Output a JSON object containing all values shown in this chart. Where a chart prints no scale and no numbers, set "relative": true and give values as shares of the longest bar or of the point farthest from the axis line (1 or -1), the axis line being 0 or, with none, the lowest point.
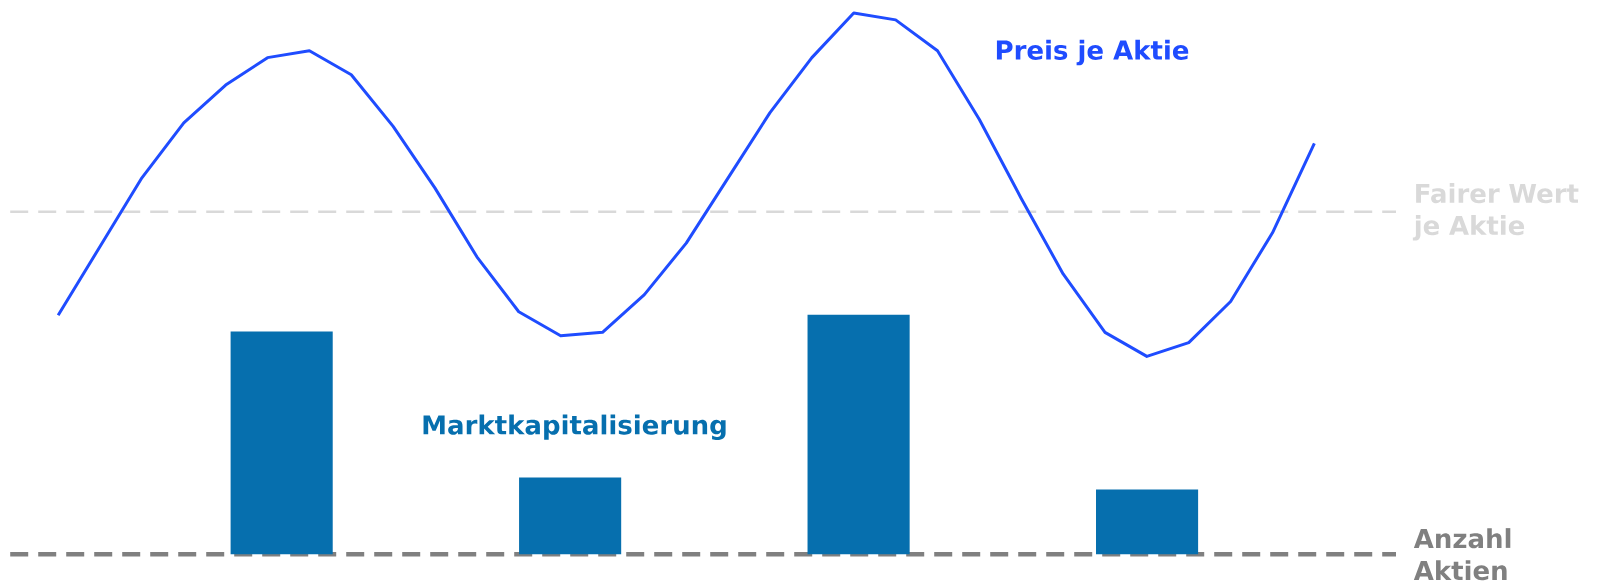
{
  "chart_data": [
    {
      "type": "bar",
      "relative": true,
      "categories": [
        null,
        null,
        null,
        null
      ],
      "series": [
        {
          "name": "Marktkapitalisierung",
          "color": "#066fae",
          "values": [
            0.93,
            0.32,
            1,
            0.27
          ]
        }
      ],
      "ref_lines": [
        {
          "axis": "y",
          "value": 1.43,
          "label": "Fairer Wert je Aktie",
          "color": "#d9d9d9",
          "line_style": "dashed"
        },
        {
          "axis": "y",
          "value": 0,
          "label": "Anzahl Aktien",
          "color": "#808080",
          "line_style": "dashed"
        }
      ]
    },
    {
      "type": "line",
      "relative": true,
      "categories": [
        null,
        null,
        null,
        null,
        null,
        null,
        null,
        null,
        null,
        null,
        null,
        null,
        null,
        null,
        null,
        null,
        null,
        null,
        null,
        null,
        null,
        null,
        null,
        null,
        null,
        null,
        null,
        null,
        null,
        null,
        null
      ],
      "series": [
        {
          "name": "Preis je Aktie",
          "color": "#1f4cff",
          "values": [
            0.12,
            0.32,
            0.52,
            0.68,
            0.79,
            0.87,
            0.89,
            0.82,
            0.67,
            0.49,
            0.29,
            0.13,
            0.06,
            0.07,
            0.18,
            0.33,
            0.52,
            0.71,
            0.87,
            1,
            0.98,
            0.89,
            0.69,
            0.46,
            0.24,
            0.07,
            0,
            0.04,
            0.16,
            0.36,
            0.62
          ]
        }
      ]
    }
  ]
}
